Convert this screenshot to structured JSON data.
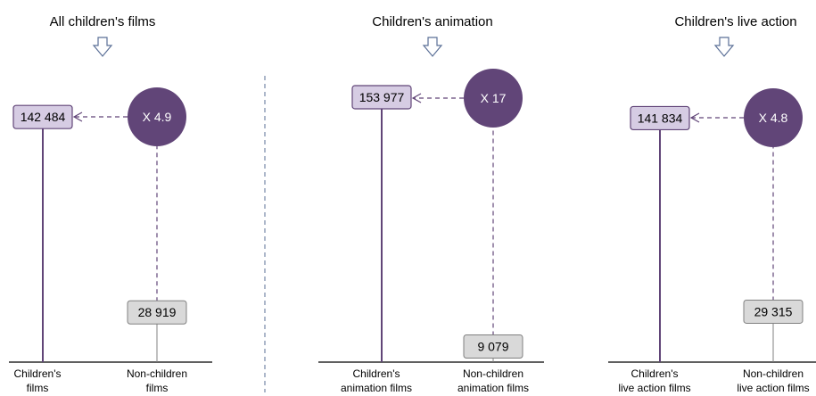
{
  "chart_data": [
    {
      "type": "lollipop",
      "title": "All children's films",
      "categories": [
        "Children's\nfilms",
        "Non-children\nfilms"
      ],
      "values": [
        142484,
        28919
      ],
      "value_labels": [
        "142 484",
        "28 919"
      ],
      "ratio_label": "X 4.9"
    },
    {
      "type": "lollipop",
      "title": "Children's animation",
      "categories": [
        "Children's\nanimation films",
        "Non-children\nanimation films"
      ],
      "values": [
        153977,
        9079
      ],
      "value_labels": [
        "153 977",
        "9 079"
      ],
      "ratio_label": "X 17"
    },
    {
      "type": "lollipop",
      "title": "Children's live action",
      "categories": [
        "Children's\nlive action films",
        "Non-children\nlive action films"
      ],
      "values": [
        141834,
        29315
      ],
      "value_labels": [
        "141 834",
        "29 315"
      ],
      "ratio_label": "X 4.8"
    }
  ],
  "colors": {
    "accent": "#614578",
    "children_box_fill": "#d6cce3",
    "children_box_stroke": "#614578",
    "nonchildren_box_fill": "#d9d9d9",
    "nonchildren_box_stroke": "#808080",
    "axis": "#000000",
    "divider": "#5a6f96"
  },
  "icons": {
    "down_arrow": "down-arrow-icon"
  }
}
